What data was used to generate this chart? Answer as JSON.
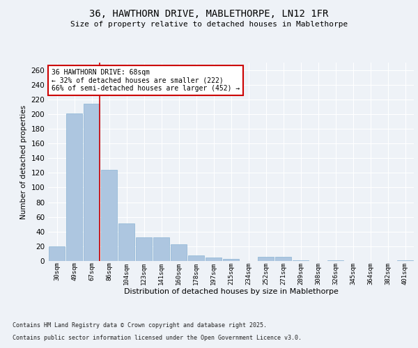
{
  "title1": "36, HAWTHORN DRIVE, MABLETHORPE, LN12 1FR",
  "title2": "Size of property relative to detached houses in Mablethorpe",
  "xlabel": "Distribution of detached houses by size in Mablethorpe",
  "ylabel": "Number of detached properties",
  "categories": [
    "30sqm",
    "49sqm",
    "67sqm",
    "86sqm",
    "104sqm",
    "123sqm",
    "141sqm",
    "160sqm",
    "178sqm",
    "197sqm",
    "215sqm",
    "234sqm",
    "252sqm",
    "271sqm",
    "289sqm",
    "308sqm",
    "326sqm",
    "345sqm",
    "364sqm",
    "382sqm",
    "401sqm"
  ],
  "values": [
    20,
    201,
    214,
    124,
    51,
    32,
    32,
    23,
    8,
    5,
    3,
    0,
    6,
    6,
    1,
    0,
    1,
    0,
    0,
    0,
    1
  ],
  "bar_color": "#adc6e0",
  "bar_edge_color": "#8ab4d4",
  "property_line_idx": 2,
  "property_line_color": "#cc0000",
  "annotation_text": "36 HAWTHORN DRIVE: 68sqm\n← 32% of detached houses are smaller (222)\n66% of semi-detached houses are larger (452) →",
  "annotation_box_color": "#ffffff",
  "annotation_box_edge": "#cc0000",
  "ylim": [
    0,
    270
  ],
  "yticks": [
    0,
    20,
    40,
    60,
    80,
    100,
    120,
    140,
    160,
    180,
    200,
    220,
    240,
    260
  ],
  "footer1": "Contains HM Land Registry data © Crown copyright and database right 2025.",
  "footer2": "Contains public sector information licensed under the Open Government Licence v3.0.",
  "background_color": "#eef2f7",
  "plot_background": "#eef2f7"
}
